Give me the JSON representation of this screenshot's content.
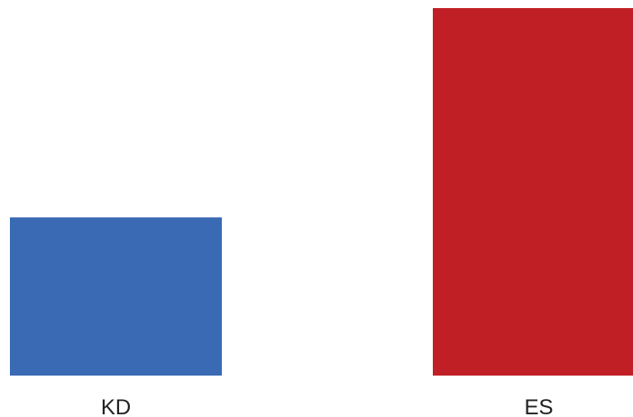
{
  "chart_data": {
    "type": "bar",
    "categories": [
      "KD",
      "ES"
    ],
    "values": [
      31,
      72
    ],
    "colors": [
      "#3a6ab4",
      "#c01f26"
    ],
    "title": "",
    "xlabel": "",
    "ylabel": "",
    "ylim": [
      0,
      72
    ],
    "grid": false,
    "legend": "none"
  }
}
